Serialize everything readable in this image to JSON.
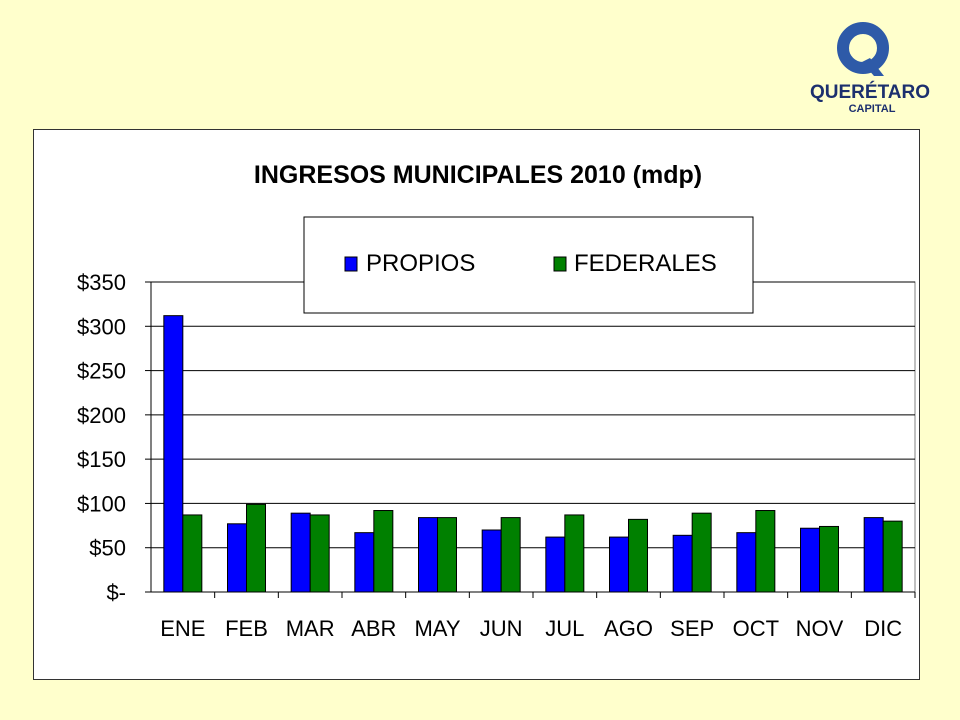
{
  "logo": {
    "brand": "QUERÉTARO",
    "sub": "CAPITAL",
    "colors": {
      "blue": "#2e5aa8",
      "dark": "#1c2f6e"
    }
  },
  "colors": {
    "background": "#ffffcc",
    "propios": "#0000ff",
    "federales": "#008000",
    "plot_bg": "#ffffff",
    "grid": "#000000"
  },
  "chart_data": {
    "type": "bar",
    "title": "INGRESOS MUNICIPALES 2010 (mdp)",
    "categories": [
      "ENE",
      "FEB",
      "MAR",
      "ABR",
      "MAY",
      "JUN",
      "JUL",
      "AGO",
      "SEP",
      "OCT",
      "NOV",
      "DIC"
    ],
    "series": [
      {
        "name": "PROPIOS",
        "color": "#0000ff",
        "values": [
          312,
          77,
          89,
          67,
          84,
          70,
          62,
          62,
          64,
          67,
          72,
          84
        ]
      },
      {
        "name": "FEDERALES",
        "color": "#008000",
        "values": [
          87,
          99,
          87,
          92,
          84,
          84,
          87,
          82,
          89,
          92,
          74,
          80
        ]
      }
    ],
    "y_ticks": [
      0,
      50,
      100,
      150,
      200,
      250,
      300,
      350
    ],
    "y_tick_labels": [
      "$-",
      "$50",
      "$100",
      "$150",
      "$200",
      "$250",
      "$300",
      "$350"
    ],
    "ylim": [
      0,
      350
    ],
    "grid": true,
    "legend_position": "top-center",
    "xlabel": "",
    "ylabel": ""
  }
}
